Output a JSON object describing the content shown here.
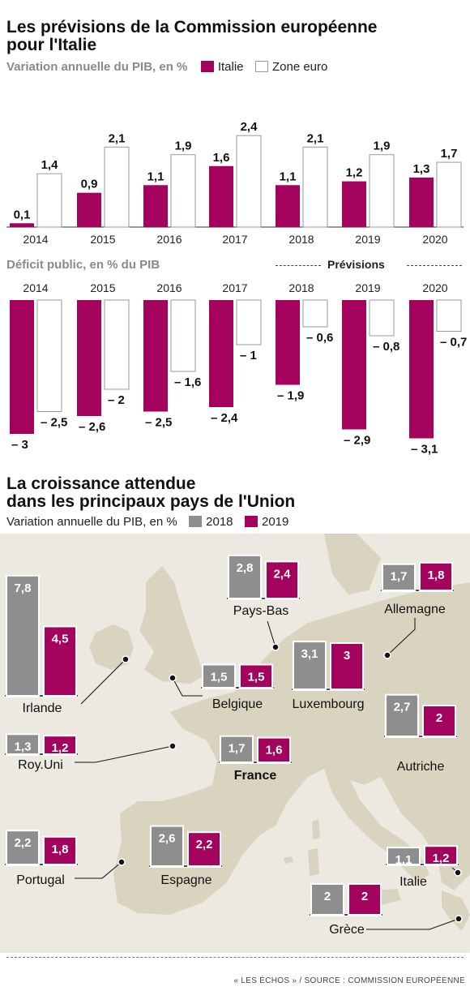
{
  "colors": {
    "italie": "#a3035d",
    "zone": "#ffffff",
    "zone_stroke": "#9a9a9a",
    "gray18": "#8e8e8e",
    "map_land": "#d8d4c0",
    "map_bg": "#ebe9e0"
  },
  "section1": {
    "title_line1": "Les prévisions de la Commission européenne",
    "title_line2": "pour l'Italie",
    "gdp_subtitle": "Variation annuelle du PIB, en %",
    "legend_italie": "Italie",
    "legend_zone": "Zone euro",
    "deficit_subtitle": "Déficit public, en % du PIB",
    "previsions_label": "Prévisions"
  },
  "section2": {
    "title_line1": "La croissance attendue",
    "title_line2": "dans les principaux pays de l'Union",
    "subtitle": "Variation annuelle du PIB, en %",
    "legend_2018": "2018",
    "legend_2019": "2019"
  },
  "source": "« LES ÉCHOS » / SOURCE : COMMISSION EUROPÉENNE",
  "chart_data": [
    {
      "type": "bar",
      "ylabel": "Variation annuelle du PIB, en %",
      "categories": [
        "2014",
        "2015",
        "2016",
        "2017",
        "2018",
        "2019",
        "2020"
      ],
      "series": [
        {
          "name": "Italie",
          "values": [
            0.1,
            0.9,
            1.1,
            1.6,
            1.1,
            1.2,
            1.3
          ],
          "labels": [
            "0,1",
            "0,9",
            "1,1",
            "1,6",
            "1,1",
            "1,2",
            "1,3"
          ]
        },
        {
          "name": "Zone euro",
          "values": [
            1.4,
            2.1,
            1.9,
            2.4,
            2.1,
            1.9,
            1.7
          ],
          "labels": [
            "1,4",
            "2,1",
            "1,9",
            "2,4",
            "2,1",
            "1,9",
            "1,7"
          ]
        }
      ]
    },
    {
      "type": "bar",
      "ylabel": "Déficit public, en % du PIB",
      "categories": [
        "2014",
        "2015",
        "2016",
        "2017",
        "2018",
        "2019",
        "2020"
      ],
      "series": [
        {
          "name": "Italie",
          "values": [
            -3,
            -2.6,
            -2.5,
            -2.4,
            -1.9,
            -2.9,
            -3.1
          ],
          "labels": [
            "– 3",
            "– 2,6",
            "– 2,5",
            "– 2,4",
            "– 1,9",
            "– 2,9",
            "– 3,1"
          ]
        },
        {
          "name": "Zone euro",
          "values": [
            -2.5,
            -2,
            -1.6,
            -1,
            -0.6,
            -0.8,
            -0.7
          ],
          "labels": [
            "– 2,5",
            "– 2",
            "– 1,6",
            "– 1",
            "– 0,6",
            "– 0,8",
            "– 0,7"
          ]
        }
      ]
    },
    {
      "type": "bar",
      "ylabel": "Variation annuelle du PIB, en %",
      "categories": [
        "Irlande",
        "Pays-Bas",
        "Allemagne",
        "Belgique",
        "Luxembourg",
        "Roy.Uni",
        "France",
        "Autriche",
        "Portugal",
        "Espagne",
        "Italie",
        "Grèce"
      ],
      "series": [
        {
          "name": "2018",
          "values": [
            7.8,
            2.8,
            1.7,
            1.5,
            3.1,
            1.3,
            1.7,
            2.7,
            2.2,
            2.6,
            1.1,
            2
          ],
          "labels": [
            "7,8",
            "2,8",
            "1,7",
            "1,5",
            "3,1",
            "1,3",
            "1,7",
            "2,7",
            "2,2",
            "2,6",
            "1,1",
            "2"
          ]
        },
        {
          "name": "2019",
          "values": [
            4.5,
            2.4,
            1.8,
            1.5,
            3,
            1.2,
            1.6,
            2,
            1.8,
            2.2,
            1.2,
            2
          ],
          "labels": [
            "4,5",
            "2,4",
            "1,8",
            "1,5",
            "3",
            "1,2",
            "1,6",
            "2",
            "1,8",
            "2,2",
            "1,2",
            "2"
          ]
        }
      ]
    }
  ]
}
